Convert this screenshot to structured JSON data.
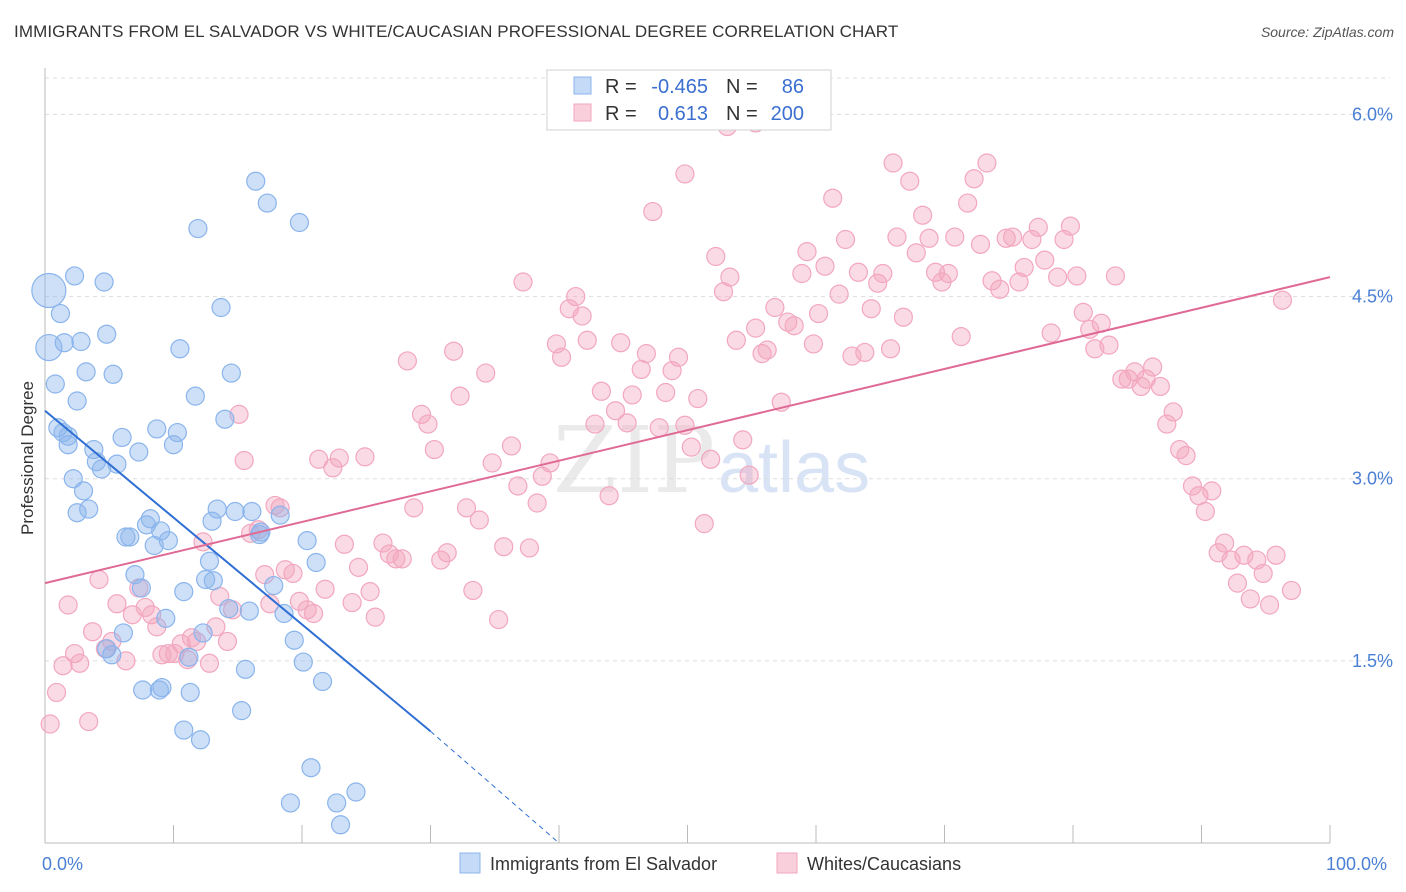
{
  "title": "IMMIGRANTS FROM EL SALVADOR VS WHITE/CAUCASIAN PROFESSIONAL DEGREE CORRELATION CHART",
  "source": "Source: ZipAtlas.com",
  "watermark": {
    "zip": "ZIP",
    "atlas": "atlas"
  },
  "colors": {
    "blue": "#8ab4ec",
    "blue_line": "#2f6fd4",
    "pink": "#f2a7bf",
    "pink_line": "#e06a96",
    "tick": "#4a7fd4"
  },
  "legend": {
    "rows": [
      {
        "r_label": "R =",
        "r_value": "-0.465",
        "n_label": "N =",
        "n_value": "86"
      },
      {
        "r_label": "R =",
        "r_value": "0.613",
        "n_label": "N =",
        "n_value": "200"
      }
    ]
  },
  "bottom_legend": [
    "Immigrants from El Salvador",
    "Whites/Caucasians"
  ],
  "chart_data": {
    "type": "scatter",
    "ylabel": "Professional Degree",
    "xlim": [
      0,
      100
    ],
    "ylim": [
      0,
      6.3
    ],
    "x_tick_labels": [
      "0.0%",
      "100.0%"
    ],
    "y_ticks": [
      1.5,
      3.0,
      4.5,
      6.0
    ],
    "y_tick_labels": [
      "1.5%",
      "3.0%",
      "4.5%",
      "6.0%"
    ],
    "grid": true,
    "legend_position": "top-center",
    "series": [
      {
        "name": "Immigrants from El Salvador",
        "r": -0.465,
        "n": 86,
        "trend": {
          "x0": 0,
          "y0": 3.56,
          "x1": 30,
          "y1": 0.92,
          "dash_to_x": 40,
          "dash_to_y": 0.0
        },
        "points": [
          [
            0.3,
            4.55
          ],
          [
            0.3,
            4.08
          ],
          [
            0.8,
            3.78
          ],
          [
            1.2,
            4.36
          ],
          [
            1.5,
            4.12
          ],
          [
            1.8,
            3.35
          ],
          [
            2.3,
            4.67
          ],
          [
            2.5,
            3.64
          ],
          [
            2.8,
            4.13
          ],
          [
            3.2,
            3.88
          ],
          [
            1.0,
            3.42
          ],
          [
            1.4,
            3.38
          ],
          [
            1.8,
            3.28
          ],
          [
            2.2,
            3.0
          ],
          [
            2.5,
            2.72
          ],
          [
            3.0,
            2.9
          ],
          [
            3.4,
            2.75
          ],
          [
            3.8,
            3.24
          ],
          [
            4.0,
            3.14
          ],
          [
            4.4,
            3.08
          ],
          [
            4.6,
            4.62
          ],
          [
            4.8,
            4.19
          ],
          [
            5.3,
            3.86
          ],
          [
            5.6,
            3.12
          ],
          [
            6.0,
            3.34
          ],
          [
            6.3,
            2.52
          ],
          [
            6.6,
            2.52
          ],
          [
            7.0,
            2.21
          ],
          [
            7.3,
            3.22
          ],
          [
            7.5,
            2.1
          ],
          [
            7.9,
            2.62
          ],
          [
            8.2,
            2.67
          ],
          [
            8.5,
            2.45
          ],
          [
            8.7,
            3.41
          ],
          [
            9.0,
            2.57
          ],
          [
            9.4,
            1.85
          ],
          [
            9.6,
            2.49
          ],
          [
            10.0,
            3.28
          ],
          [
            10.3,
            3.38
          ],
          [
            10.5,
            4.07
          ],
          [
            10.8,
            2.07
          ],
          [
            11.3,
            1.24
          ],
          [
            11.7,
            3.68
          ],
          [
            11.9,
            5.06
          ],
          [
            12.3,
            1.73
          ],
          [
            12.5,
            2.17
          ],
          [
            12.8,
            2.32
          ],
          [
            13.0,
            2.65
          ],
          [
            13.4,
            2.75
          ],
          [
            13.7,
            4.41
          ],
          [
            14.0,
            3.49
          ],
          [
            14.5,
            3.87
          ],
          [
            14.8,
            2.73
          ],
          [
            15.3,
            1.09
          ],
          [
            15.6,
            1.43
          ],
          [
            15.9,
            1.91
          ],
          [
            16.1,
            2.73
          ],
          [
            16.4,
            5.45
          ],
          [
            16.8,
            2.56
          ],
          [
            17.3,
            5.27
          ],
          [
            17.8,
            2.12
          ],
          [
            18.3,
            2.7
          ],
          [
            18.6,
            1.89
          ],
          [
            19.1,
            0.33
          ],
          [
            19.4,
            1.67
          ],
          [
            19.8,
            5.11
          ],
          [
            20.1,
            1.49
          ],
          [
            20.4,
            2.49
          ],
          [
            20.7,
            0.62
          ],
          [
            21.1,
            2.31
          ],
          [
            4.8,
            1.6
          ],
          [
            5.2,
            1.55
          ],
          [
            6.1,
            1.73
          ],
          [
            7.6,
            1.26
          ],
          [
            8.9,
            1.26
          ],
          [
            9.1,
            1.28
          ],
          [
            10.8,
            0.93
          ],
          [
            11.2,
            1.53
          ],
          [
            12.1,
            0.85
          ],
          [
            13.1,
            2.16
          ],
          [
            21.6,
            1.33
          ],
          [
            23.0,
            0.15
          ],
          [
            24.2,
            0.42
          ],
          [
            22.7,
            0.33
          ],
          [
            16.7,
            2.54
          ],
          [
            14.3,
            1.93
          ]
        ]
      },
      {
        "name": "Whites/Caucasians",
        "r": 0.613,
        "n": 200,
        "trend": {
          "x0": 0,
          "y0": 2.14,
          "x1": 100,
          "y1": 4.66
        },
        "points": [
          [
            0.4,
            0.98
          ],
          [
            0.9,
            1.24
          ],
          [
            1.4,
            1.46
          ],
          [
            1.8,
            1.96
          ],
          [
            2.3,
            1.56
          ],
          [
            2.7,
            1.48
          ],
          [
            3.4,
            1.0
          ],
          [
            3.7,
            1.74
          ],
          [
            4.2,
            2.17
          ],
          [
            4.7,
            1.6
          ],
          [
            5.2,
            1.66
          ],
          [
            5.6,
            1.97
          ],
          [
            6.3,
            1.5
          ],
          [
            6.8,
            1.88
          ],
          [
            7.3,
            2.1
          ],
          [
            7.8,
            1.94
          ],
          [
            8.3,
            1.88
          ],
          [
            8.7,
            1.78
          ],
          [
            9.1,
            1.55
          ],
          [
            9.6,
            1.56
          ],
          [
            10.1,
            1.56
          ],
          [
            10.6,
            1.64
          ],
          [
            11.1,
            1.51
          ],
          [
            11.4,
            1.69
          ],
          [
            11.8,
            1.66
          ],
          [
            12.3,
            2.48
          ],
          [
            12.8,
            1.48
          ],
          [
            13.3,
            1.78
          ],
          [
            13.6,
            2.03
          ],
          [
            14.2,
            1.66
          ],
          [
            14.6,
            1.92
          ],
          [
            15.1,
            3.53
          ],
          [
            15.5,
            3.15
          ],
          [
            16.0,
            2.55
          ],
          [
            16.6,
            2.58
          ],
          [
            17.1,
            2.21
          ],
          [
            17.5,
            1.97
          ],
          [
            17.9,
            2.78
          ],
          [
            18.3,
            2.76
          ],
          [
            18.7,
            2.25
          ],
          [
            19.3,
            2.22
          ],
          [
            19.8,
            1.99
          ],
          [
            20.4,
            1.92
          ],
          [
            20.9,
            1.89
          ],
          [
            21.3,
            3.16
          ],
          [
            21.8,
            2.09
          ],
          [
            22.4,
            3.09
          ],
          [
            22.9,
            3.17
          ],
          [
            23.3,
            2.46
          ],
          [
            23.9,
            1.98
          ],
          [
            24.4,
            2.27
          ],
          [
            24.9,
            3.18
          ],
          [
            25.3,
            2.07
          ],
          [
            25.7,
            1.86
          ],
          [
            26.3,
            2.47
          ],
          [
            26.8,
            2.38
          ],
          [
            27.3,
            2.34
          ],
          [
            27.8,
            2.34
          ],
          [
            28.2,
            3.97
          ],
          [
            28.7,
            2.76
          ],
          [
            29.3,
            3.53
          ],
          [
            29.8,
            3.45
          ],
          [
            30.3,
            3.24
          ],
          [
            30.8,
            2.33
          ],
          [
            31.3,
            2.39
          ],
          [
            31.8,
            4.05
          ],
          [
            32.3,
            3.68
          ],
          [
            32.8,
            2.76
          ],
          [
            33.3,
            2.08
          ],
          [
            33.8,
            2.66
          ],
          [
            34.3,
            3.87
          ],
          [
            34.8,
            3.13
          ],
          [
            35.3,
            1.84
          ],
          [
            35.7,
            2.44
          ],
          [
            36.3,
            3.27
          ],
          [
            36.8,
            2.94
          ],
          [
            37.2,
            4.62
          ],
          [
            37.7,
            2.43
          ],
          [
            38.3,
            2.8
          ],
          [
            38.7,
            3.02
          ],
          [
            39.3,
            3.13
          ],
          [
            39.8,
            4.11
          ],
          [
            40.2,
            4.0
          ],
          [
            40.8,
            4.4
          ],
          [
            41.3,
            4.5
          ],
          [
            41.8,
            4.34
          ],
          [
            42.2,
            4.14
          ],
          [
            42.8,
            3.45
          ],
          [
            43.3,
            3.72
          ],
          [
            43.9,
            2.86
          ],
          [
            44.4,
            3.56
          ],
          [
            44.8,
            4.12
          ],
          [
            45.3,
            3.46
          ],
          [
            45.7,
            3.69
          ],
          [
            46.4,
            3.9
          ],
          [
            46.8,
            4.03
          ],
          [
            47.3,
            5.2
          ],
          [
            47.8,
            3.42
          ],
          [
            48.3,
            3.71
          ],
          [
            48.8,
            3.89
          ],
          [
            49.3,
            4.0
          ],
          [
            49.8,
            3.44
          ],
          [
            50.3,
            3.26
          ],
          [
            50.8,
            3.66
          ],
          [
            51.3,
            2.63
          ],
          [
            51.8,
            3.16
          ],
          [
            52.2,
            4.83
          ],
          [
            52.8,
            4.54
          ],
          [
            53.3,
            4.66
          ],
          [
            53.8,
            4.14
          ],
          [
            54.3,
            3.32
          ],
          [
            54.8,
            3.03
          ],
          [
            55.3,
            4.24
          ],
          [
            55.8,
            4.03
          ],
          [
            56.2,
            4.06
          ],
          [
            56.8,
            4.41
          ],
          [
            57.3,
            3.63
          ],
          [
            57.8,
            4.29
          ],
          [
            58.3,
            4.26
          ],
          [
            58.9,
            4.69
          ],
          [
            59.3,
            4.87
          ],
          [
            59.8,
            4.11
          ],
          [
            60.2,
            4.36
          ],
          [
            60.7,
            4.75
          ],
          [
            61.3,
            5.31
          ],
          [
            61.8,
            4.52
          ],
          [
            62.3,
            4.97
          ],
          [
            62.8,
            4.01
          ],
          [
            63.3,
            4.7
          ],
          [
            63.8,
            4.04
          ],
          [
            64.3,
            4.4
          ],
          [
            64.8,
            4.61
          ],
          [
            65.2,
            4.69
          ],
          [
            65.8,
            4.07
          ],
          [
            66.3,
            4.99
          ],
          [
            66.8,
            4.33
          ],
          [
            67.3,
            5.45
          ],
          [
            67.8,
            4.86
          ],
          [
            68.3,
            5.17
          ],
          [
            68.8,
            4.98
          ],
          [
            69.3,
            4.7
          ],
          [
            69.8,
            4.62
          ],
          [
            70.3,
            4.69
          ],
          [
            70.8,
            4.99
          ],
          [
            71.3,
            4.17
          ],
          [
            71.8,
            5.27
          ],
          [
            72.3,
            5.47
          ],
          [
            72.8,
            4.93
          ],
          [
            73.3,
            5.6
          ],
          [
            73.7,
            4.63
          ],
          [
            74.3,
            4.56
          ],
          [
            74.8,
            4.98
          ],
          [
            75.3,
            4.99
          ],
          [
            75.8,
            4.62
          ],
          [
            76.2,
            4.74
          ],
          [
            76.8,
            4.97
          ],
          [
            77.3,
            5.07
          ],
          [
            77.8,
            4.8
          ],
          [
            78.3,
            4.2
          ],
          [
            78.8,
            4.66
          ],
          [
            79.3,
            4.97
          ],
          [
            79.8,
            5.08
          ],
          [
            80.3,
            4.67
          ],
          [
            80.8,
            4.37
          ],
          [
            81.3,
            4.23
          ],
          [
            81.7,
            4.07
          ],
          [
            82.2,
            4.28
          ],
          [
            82.8,
            4.1
          ],
          [
            83.3,
            4.67
          ],
          [
            83.8,
            3.82
          ],
          [
            84.3,
            3.82
          ],
          [
            84.8,
            3.88
          ],
          [
            85.3,
            3.76
          ],
          [
            85.7,
            3.82
          ],
          [
            86.2,
            3.92
          ],
          [
            86.8,
            3.76
          ],
          [
            87.3,
            3.45
          ],
          [
            87.8,
            3.55
          ],
          [
            88.3,
            3.24
          ],
          [
            88.8,
            3.19
          ],
          [
            89.3,
            2.94
          ],
          [
            89.8,
            2.86
          ],
          [
            90.3,
            2.73
          ],
          [
            90.8,
            2.9
          ],
          [
            91.3,
            2.39
          ],
          [
            91.8,
            2.47
          ],
          [
            92.3,
            2.33
          ],
          [
            92.8,
            2.14
          ],
          [
            93.3,
            2.37
          ],
          [
            93.8,
            2.01
          ],
          [
            94.3,
            2.33
          ],
          [
            94.8,
            2.22
          ],
          [
            95.3,
            1.96
          ],
          [
            95.8,
            2.37
          ],
          [
            96.3,
            4.47
          ],
          [
            66.0,
            5.6
          ],
          [
            55.3,
            5.93
          ],
          [
            53.1,
            5.9
          ],
          [
            49.8,
            5.51
          ],
          [
            97.0,
            2.08
          ]
        ]
      }
    ]
  }
}
